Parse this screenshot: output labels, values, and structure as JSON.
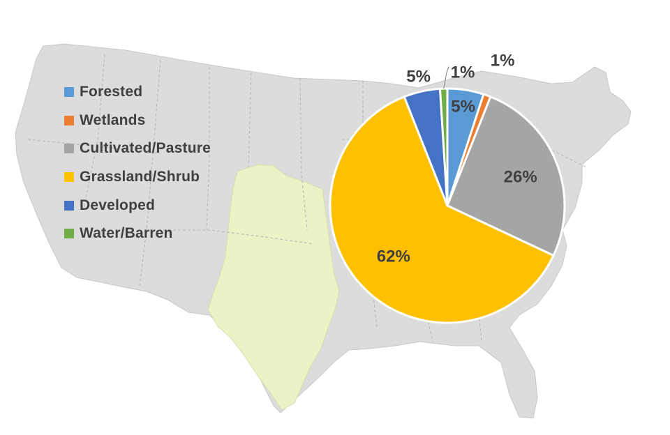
{
  "chart_data": {
    "type": "pie",
    "title": "",
    "categories": [
      "Forested",
      "Wetlands",
      "Cultivated/Pasture",
      "Grassland/Shrub",
      "Developed",
      "Water/Barren"
    ],
    "values": [
      5,
      1,
      26,
      62,
      5,
      1
    ],
    "data_labels": [
      "5%",
      "1%",
      "26%",
      "62%",
      "5%",
      "1%"
    ],
    "colors": [
      "#5B9BD5",
      "#ED7D31",
      "#A5A5A5",
      "#FFC000",
      "#4472C4",
      "#70AD47"
    ],
    "legend_position": "left",
    "background": "map of the contiguous United States with highlighted Great Plains region"
  },
  "legend": {
    "items": [
      {
        "label": "Forested",
        "color": "#5B9BD5"
      },
      {
        "label": "Wetlands",
        "color": "#ED7D31"
      },
      {
        "label": "Cultivated/Pasture",
        "color": "#A5A5A5"
      },
      {
        "label": "Grassland/Shrub",
        "color": "#FFC000"
      },
      {
        "label": "Developed",
        "color": "#4472C4"
      },
      {
        "label": "Water/Barren",
        "color": "#70AD47"
      }
    ]
  },
  "map_colors": {
    "land": "#DCDCDC",
    "region": "#EBF2C6",
    "borders": "#B4B4B4"
  }
}
